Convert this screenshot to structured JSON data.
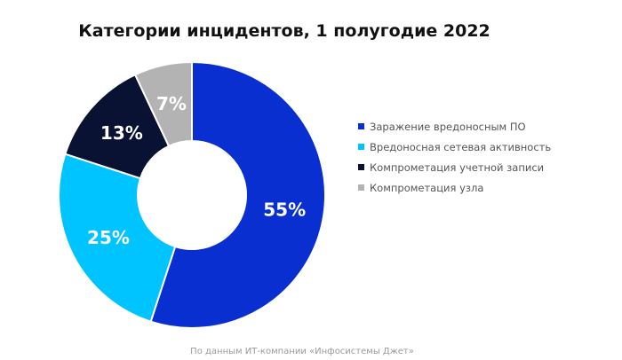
{
  "chart_data": {
    "type": "pie",
    "title": "Категории инцидентов, 1 полугодие 2022",
    "categories": [
      "Заражение вредоносным ПО",
      "Вредоносная сетевая активность",
      "Компрометация учетной записи",
      "Компрометация узла"
    ],
    "values": [
      55,
      25,
      13,
      7
    ],
    "value_labels": [
      "55%",
      "25%",
      "13%",
      "7%"
    ],
    "colors": [
      "#0a2fd0",
      "#00c4ff",
      "#0a1233",
      "#b3b3b3"
    ],
    "donut": true,
    "legend_position": "right",
    "source": "По данным ИТ-компании «Инфосистемы Джет»"
  }
}
